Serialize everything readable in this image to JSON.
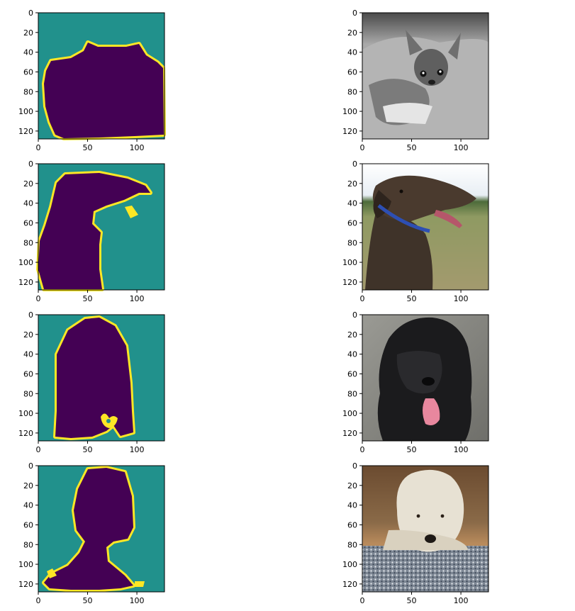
{
  "chart_data": [
    {
      "type": "heatmap",
      "kind": "segmentation-mask",
      "colormap": "viridis",
      "classes": [
        "background",
        "foreground",
        "boundary"
      ],
      "class_colors": [
        "#21918c",
        "#440154",
        "#fde725"
      ],
      "xlim": [
        0,
        128
      ],
      "ylim": [
        128,
        0
      ],
      "xticks": [
        0,
        50,
        100
      ],
      "yticks": [
        0,
        20,
        40,
        60,
        80,
        100,
        120
      ],
      "xlabel": "",
      "ylabel": "",
      "title": ""
    },
    {
      "type": "heatmap",
      "kind": "photo",
      "content_icon": "chihuahua-grayscale-photo",
      "xlim": [
        0,
        128
      ],
      "ylim": [
        128,
        0
      ],
      "xticks": [
        0,
        50,
        100
      ],
      "yticks": [
        0,
        20,
        40,
        60,
        80,
        100,
        120
      ],
      "xlabel": "",
      "ylabel": "",
      "title": ""
    },
    {
      "type": "heatmap",
      "kind": "segmentation-mask",
      "colormap": "viridis",
      "classes": [
        "background",
        "foreground",
        "boundary"
      ],
      "class_colors": [
        "#21918c",
        "#440154",
        "#fde725"
      ],
      "xlim": [
        0,
        128
      ],
      "ylim": [
        128,
        0
      ],
      "xticks": [
        0,
        50,
        100
      ],
      "yticks": [
        0,
        20,
        40,
        60,
        80,
        100,
        120
      ],
      "xlabel": "",
      "ylabel": "",
      "title": ""
    },
    {
      "type": "heatmap",
      "kind": "photo",
      "content_icon": "brown-pointer-dog-photo",
      "xlim": [
        0,
        128
      ],
      "ylim": [
        128,
        0
      ],
      "xticks": [
        0,
        50,
        100
      ],
      "yticks": [
        0,
        20,
        40,
        60,
        80,
        100,
        120
      ],
      "xlabel": "",
      "ylabel": "",
      "title": ""
    },
    {
      "type": "heatmap",
      "kind": "segmentation-mask",
      "colormap": "viridis",
      "classes": [
        "background",
        "foreground",
        "boundary"
      ],
      "class_colors": [
        "#21918c",
        "#440154",
        "#fde725"
      ],
      "xlim": [
        0,
        128
      ],
      "ylim": [
        128,
        0
      ],
      "xticks": [
        0,
        50,
        100
      ],
      "yticks": [
        0,
        20,
        40,
        60,
        80,
        100,
        120
      ],
      "xlabel": "",
      "ylabel": "",
      "title": ""
    },
    {
      "type": "heatmap",
      "kind": "photo",
      "content_icon": "black-newfoundland-dog-photo",
      "xlim": [
        0,
        128
      ],
      "ylim": [
        128,
        0
      ],
      "xticks": [
        0,
        50,
        100
      ],
      "yticks": [
        0,
        20,
        40,
        60,
        80,
        100,
        120
      ],
      "xlabel": "",
      "ylabel": "",
      "title": ""
    },
    {
      "type": "heatmap",
      "kind": "segmentation-mask",
      "colormap": "viridis",
      "classes": [
        "background",
        "foreground",
        "boundary"
      ],
      "class_colors": [
        "#21918c",
        "#440154",
        "#fde725"
      ],
      "xlim": [
        0,
        128
      ],
      "ylim": [
        128,
        0
      ],
      "xticks": [
        0,
        50,
        100
      ],
      "yticks": [
        0,
        20,
        40,
        60,
        80,
        100,
        120
      ],
      "xlabel": "",
      "ylabel": "",
      "title": ""
    },
    {
      "type": "heatmap",
      "kind": "photo",
      "content_icon": "cream-shaggy-dog-photo",
      "xlim": [
        0,
        128
      ],
      "ylim": [
        128,
        0
      ],
      "xticks": [
        0,
        50,
        100
      ],
      "yticks": [
        0,
        20,
        40,
        60,
        80,
        100,
        120
      ],
      "xlabel": "",
      "ylabel": "",
      "title": ""
    }
  ]
}
